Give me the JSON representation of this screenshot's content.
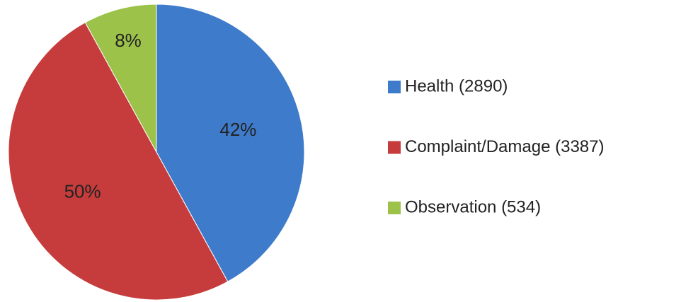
{
  "chart_data": {
    "type": "pie",
    "categories": [
      "Health (2890)",
      "Complaint/Damage (3387)",
      "Observation (534)"
    ],
    "values": [
      42,
      50,
      8
    ],
    "value_labels": [
      "42%",
      "50%",
      "8%"
    ],
    "colors": [
      "#3f7bcb",
      "#c63c3c",
      "#9cc24a"
    ],
    "legend": "right"
  }
}
